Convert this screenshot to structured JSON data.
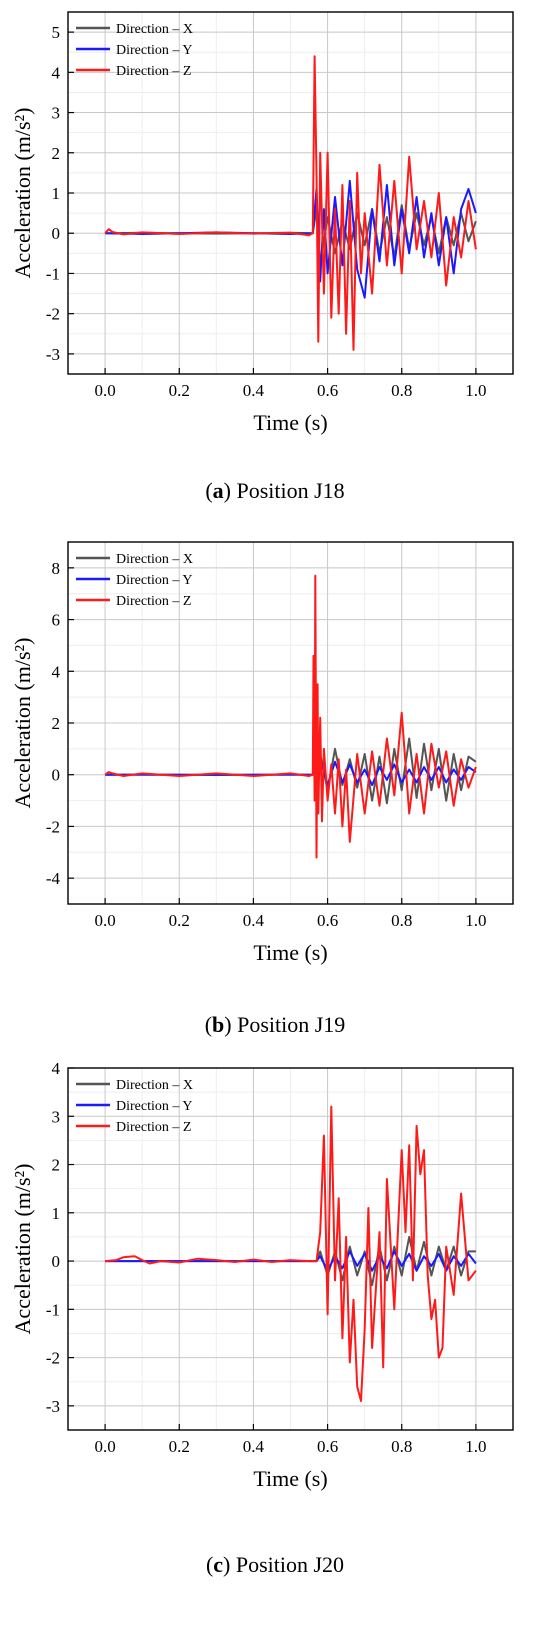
{
  "chart_data": [
    {
      "type": "line",
      "caption_letter": "a",
      "caption_text": "Position J18",
      "xlabel": "Time (s)",
      "ylabel": "Acceleration (m/s²)",
      "xlim": [
        -0.1,
        1.1
      ],
      "ylim": [
        -3.5,
        5.5
      ],
      "xticks": [
        0.0,
        0.2,
        0.4,
        0.6,
        0.8,
        1.0
      ],
      "yticks": [
        -3,
        -2,
        -1,
        0,
        1,
        2,
        3,
        4,
        5
      ],
      "grid": true,
      "legend_position": "top-left",
      "series": [
        {
          "name": "Direction – X",
          "color": "#555555",
          "x": [
            0.0,
            0.1,
            0.2,
            0.3,
            0.4,
            0.5,
            0.56,
            0.57,
            0.58,
            0.6,
            0.62,
            0.64,
            0.66,
            0.68,
            0.7,
            0.72,
            0.74,
            0.76,
            0.78,
            0.8,
            0.82,
            0.84,
            0.86,
            0.88,
            0.9,
            0.92,
            0.94,
            0.96,
            0.98,
            1.0
          ],
          "y": [
            0.0,
            0.01,
            0.0,
            -0.01,
            0.0,
            0.01,
            0.0,
            0.6,
            -0.8,
            0.4,
            -0.5,
            0.3,
            -0.4,
            0.5,
            -0.3,
            0.6,
            -0.5,
            0.4,
            -0.6,
            0.7,
            -0.4,
            0.5,
            -0.3,
            0.4,
            -0.5,
            0.4,
            -0.3,
            0.5,
            -0.2,
            0.3
          ]
        },
        {
          "name": "Direction – Y",
          "color": "#1a1aff",
          "x": [
            0.0,
            0.1,
            0.2,
            0.3,
            0.4,
            0.5,
            0.56,
            0.57,
            0.58,
            0.59,
            0.6,
            0.62,
            0.64,
            0.66,
            0.68,
            0.7,
            0.72,
            0.74,
            0.76,
            0.78,
            0.8,
            0.82,
            0.84,
            0.86,
            0.88,
            0.9,
            0.92,
            0.94,
            0.96,
            0.98,
            1.0
          ],
          "y": [
            0.0,
            -0.02,
            0.0,
            0.02,
            0.0,
            -0.02,
            0.0,
            1.1,
            -1.2,
            0.6,
            -1.0,
            0.9,
            -0.8,
            1.3,
            -0.9,
            -1.6,
            0.6,
            -0.7,
            1.2,
            -0.8,
            0.6,
            -0.5,
            0.9,
            -0.6,
            0.5,
            -0.8,
            0.4,
            -1.0,
            0.6,
            1.1,
            0.5
          ]
        },
        {
          "name": "Direction – Z",
          "color": "#ff1a1a",
          "x": [
            0.0,
            0.01,
            0.02,
            0.05,
            0.1,
            0.2,
            0.3,
            0.4,
            0.5,
            0.55,
            0.56,
            0.565,
            0.57,
            0.575,
            0.58,
            0.59,
            0.6,
            0.61,
            0.62,
            0.63,
            0.64,
            0.65,
            0.66,
            0.67,
            0.68,
            0.69,
            0.7,
            0.72,
            0.74,
            0.76,
            0.78,
            0.8,
            0.82,
            0.84,
            0.86,
            0.88,
            0.9,
            0.92,
            0.94,
            0.96,
            0.98,
            1.0
          ],
          "y": [
            0.0,
            0.1,
            0.03,
            -0.03,
            0.02,
            -0.02,
            0.02,
            -0.01,
            0.01,
            -0.05,
            0.0,
            4.4,
            1.5,
            -2.7,
            2.0,
            -1.5,
            2.0,
            -2.1,
            0.6,
            -2.0,
            1.2,
            -2.5,
            0.8,
            -2.9,
            1.5,
            -1.0,
            0.5,
            -1.5,
            1.7,
            -0.8,
            1.3,
            -1.0,
            1.9,
            -0.4,
            0.8,
            -0.6,
            1.0,
            -1.3,
            0.4,
            -0.6,
            0.8,
            -0.4
          ]
        }
      ]
    },
    {
      "type": "line",
      "caption_letter": "b",
      "caption_text": "Position J19",
      "xlabel": "Time (s)",
      "ylabel": "Acceleration (m/s²)",
      "xlim": [
        -0.1,
        1.1
      ],
      "ylim": [
        -5,
        9
      ],
      "xticks": [
        0.0,
        0.2,
        0.4,
        0.6,
        0.8,
        1.0
      ],
      "yticks": [
        -4,
        -2,
        0,
        2,
        4,
        6,
        8
      ],
      "grid": true,
      "legend_position": "top-left",
      "series": [
        {
          "name": "Direction – X",
          "color": "#555555",
          "x": [
            0.0,
            0.1,
            0.2,
            0.3,
            0.4,
            0.5,
            0.56,
            0.58,
            0.6,
            0.62,
            0.64,
            0.66,
            0.68,
            0.7,
            0.72,
            0.74,
            0.76,
            0.78,
            0.8,
            0.82,
            0.84,
            0.86,
            0.88,
            0.9,
            0.92,
            0.94,
            0.96,
            0.98,
            1.0
          ],
          "y": [
            0.0,
            0.01,
            0.0,
            -0.01,
            0.0,
            0.01,
            0.0,
            0.8,
            -0.6,
            1.0,
            -0.4,
            0.6,
            -0.5,
            0.8,
            -1.0,
            0.7,
            -1.1,
            1.0,
            -0.6,
            1.4,
            -0.9,
            1.2,
            -0.6,
            1.0,
            -1.0,
            0.8,
            -0.6,
            0.7,
            0.5
          ]
        },
        {
          "name": "Direction – Y",
          "color": "#1a1aff",
          "x": [
            0.0,
            0.1,
            0.2,
            0.3,
            0.4,
            0.5,
            0.56,
            0.58,
            0.6,
            0.62,
            0.64,
            0.66,
            0.68,
            0.7,
            0.72,
            0.74,
            0.76,
            0.78,
            0.8,
            0.82,
            0.84,
            0.86,
            0.88,
            0.9,
            0.92,
            0.94,
            0.96,
            0.98,
            1.0
          ],
          "y": [
            0.0,
            0.0,
            0.0,
            0.0,
            0.0,
            0.0,
            0.0,
            0.6,
            -0.4,
            0.5,
            -0.3,
            0.4,
            -0.3,
            0.2,
            -0.4,
            0.3,
            -0.2,
            0.4,
            -0.3,
            0.2,
            -0.3,
            0.3,
            -0.2,
            0.3,
            -0.3,
            0.2,
            -0.2,
            0.3,
            0.1
          ]
        },
        {
          "name": "Direction – Z",
          "color": "#ff1a1a",
          "x": [
            0.0,
            0.01,
            0.02,
            0.05,
            0.1,
            0.2,
            0.3,
            0.4,
            0.5,
            0.55,
            0.56,
            0.562,
            0.565,
            0.567,
            0.57,
            0.573,
            0.575,
            0.58,
            0.585,
            0.59,
            0.6,
            0.61,
            0.62,
            0.63,
            0.64,
            0.65,
            0.66,
            0.68,
            0.7,
            0.72,
            0.74,
            0.76,
            0.78,
            0.8,
            0.82,
            0.84,
            0.86,
            0.88,
            0.9,
            0.92,
            0.94,
            0.96,
            0.98,
            1.0
          ],
          "y": [
            0.0,
            0.1,
            0.05,
            -0.05,
            0.05,
            -0.05,
            0.05,
            -0.05,
            0.05,
            -0.05,
            0.0,
            4.6,
            -1.0,
            7.7,
            -3.2,
            3.5,
            -1.5,
            2.2,
            -1.8,
            1.0,
            -1.0,
            0.4,
            -1.5,
            0.6,
            -2.0,
            0.2,
            -2.6,
            0.8,
            -1.5,
            0.9,
            -1.2,
            1.4,
            -0.8,
            2.4,
            -1.5,
            0.8,
            -1.5,
            1.2,
            -0.5,
            0.9,
            -1.2,
            0.6,
            -0.5,
            0.3
          ]
        }
      ]
    },
    {
      "type": "line",
      "caption_letter": "c",
      "caption_text": "Position J20",
      "xlabel": "Time (s)",
      "ylabel": "Acceleration (m/s²)",
      "xlim": [
        -0.1,
        1.1
      ],
      "ylim": [
        -3.5,
        4
      ],
      "xticks": [
        0.0,
        0.2,
        0.4,
        0.6,
        0.8,
        1.0
      ],
      "yticks": [
        -3,
        -2,
        -1,
        0,
        1,
        2,
        3,
        4
      ],
      "grid": true,
      "legend_position": "top-left",
      "series": [
        {
          "name": "Direction – X",
          "color": "#555555",
          "x": [
            0.0,
            0.1,
            0.2,
            0.3,
            0.4,
            0.5,
            0.57,
            0.58,
            0.6,
            0.62,
            0.64,
            0.66,
            0.68,
            0.7,
            0.72,
            0.74,
            0.76,
            0.78,
            0.8,
            0.82,
            0.84,
            0.86,
            0.88,
            0.9,
            0.92,
            0.94,
            0.96,
            0.98,
            1.0
          ],
          "y": [
            0.0,
            0.0,
            0.0,
            0.0,
            0.0,
            0.0,
            0.0,
            0.2,
            -0.3,
            0.2,
            -0.4,
            0.3,
            -0.3,
            0.2,
            -0.5,
            0.3,
            -0.4,
            0.3,
            -0.3,
            0.5,
            -0.2,
            0.4,
            -0.3,
            0.3,
            -0.2,
            0.3,
            -0.3,
            0.2,
            0.2
          ]
        },
        {
          "name": "Direction – Y",
          "color": "#1a1aff",
          "x": [
            0.0,
            0.1,
            0.2,
            0.3,
            0.4,
            0.5,
            0.57,
            0.58,
            0.6,
            0.62,
            0.64,
            0.66,
            0.68,
            0.7,
            0.72,
            0.74,
            0.76,
            0.78,
            0.8,
            0.82,
            0.84,
            0.86,
            0.88,
            0.9,
            0.92,
            0.94,
            0.96,
            0.98,
            1.0
          ],
          "y": [
            0.0,
            0.0,
            0.0,
            0.0,
            0.0,
            0.0,
            0.0,
            0.1,
            -0.2,
            0.1,
            -0.15,
            0.2,
            -0.1,
            0.15,
            -0.2,
            0.1,
            -0.15,
            0.2,
            -0.1,
            0.15,
            -0.2,
            0.1,
            -0.1,
            0.15,
            -0.2,
            0.1,
            -0.1,
            0.15,
            -0.05
          ]
        },
        {
          "name": "Direction – Z",
          "color": "#ff1a1a",
          "x": [
            0.0,
            0.03,
            0.05,
            0.08,
            0.1,
            0.12,
            0.15,
            0.2,
            0.25,
            0.3,
            0.35,
            0.4,
            0.45,
            0.5,
            0.55,
            0.57,
            0.58,
            0.59,
            0.6,
            0.61,
            0.62,
            0.63,
            0.64,
            0.65,
            0.66,
            0.67,
            0.68,
            0.69,
            0.7,
            0.71,
            0.72,
            0.74,
            0.75,
            0.76,
            0.78,
            0.8,
            0.81,
            0.82,
            0.83,
            0.84,
            0.85,
            0.86,
            0.87,
            0.88,
            0.89,
            0.9,
            0.91,
            0.92,
            0.94,
            0.96,
            0.98,
            1.0
          ],
          "y": [
            0.0,
            0.02,
            0.08,
            0.1,
            0.02,
            -0.05,
            0.0,
            -0.03,
            0.05,
            0.02,
            -0.02,
            0.03,
            -0.02,
            0.02,
            0.0,
            0.0,
            0.6,
            2.6,
            -1.1,
            3.2,
            -0.4,
            1.3,
            -1.6,
            0.5,
            -2.1,
            -0.8,
            -2.6,
            -2.9,
            -1.4,
            1.1,
            -1.8,
            0.6,
            -2.2,
            1.7,
            -1.0,
            2.3,
            0.6,
            2.4,
            -0.4,
            2.8,
            1.8,
            2.3,
            -0.3,
            -1.2,
            -0.8,
            -2.0,
            -1.8,
            0.3,
            -0.7,
            1.4,
            -0.4,
            -0.2
          ]
        }
      ]
    }
  ]
}
